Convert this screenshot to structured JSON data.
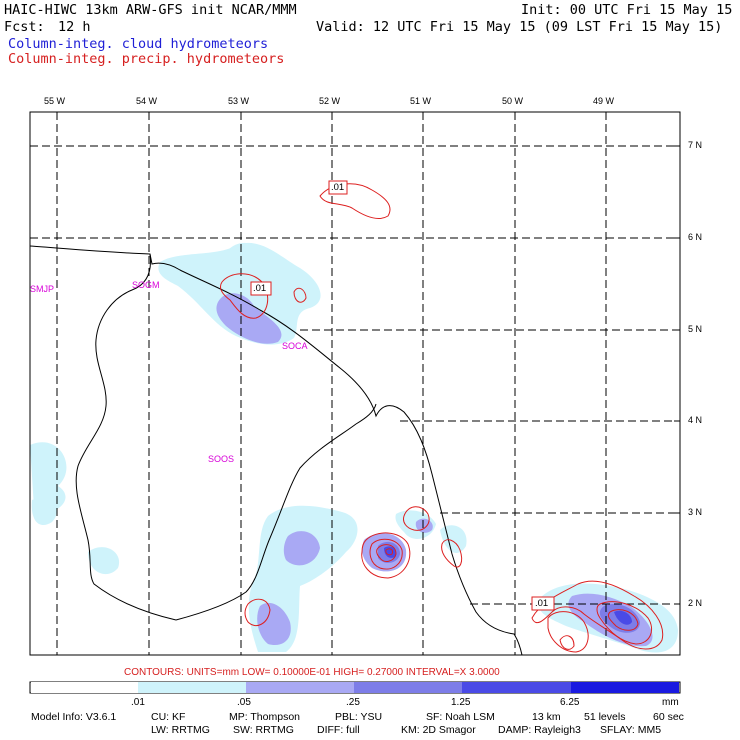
{
  "header": {
    "title": "HAIC-HIWC 13km ARW-GFS init   NCAR/MMM",
    "init": "Init: 00 UTC Fri 15 May 15",
    "fcst_label": "Fcst:",
    "fcst_value": "12 h",
    "valid": "Valid: 12 UTC Fri 15 May 15 (09 LST Fri 15 May 15)",
    "field1": "Column-integ. cloud hydrometeors",
    "field2": "Column-integ. precip. hydrometeors"
  },
  "lon_labels": [
    "55 W",
    "54 W",
    "53 W",
    "52 W",
    "51 W",
    "50 W",
    "49 W"
  ],
  "lat_labels": [
    "7 N",
    "6 N",
    "5 N",
    "4 N",
    "3 N",
    "2 N"
  ],
  "stations": [
    "SMJP",
    "SOGM",
    "SOCA",
    "SOOS"
  ],
  "contour_labels": [
    ".01",
    ".01",
    ".01"
  ],
  "contours_info": "CONTOURS:  UNITS=mm  LOW= 0.10000E-01  HIGH= 0.27000     INTERVAL=X  3.0000",
  "colorbar": {
    "ticks": [
      ".01",
      ".05",
      ".25",
      "1.25",
      "6.25",
      "mm"
    ],
    "colors": [
      "#ffffff",
      "#cff3fb",
      "#a9a9f4",
      "#7d7de8",
      "#4a4ae6",
      "#1a1ae0"
    ]
  },
  "model_info": {
    "line1": [
      "Model Info: V3.6.1",
      "CU: KF",
      "MP: Thompson",
      "PBL: YSU",
      "SF: Noah LSM",
      "13 km",
      "51 levels",
      "60 sec"
    ],
    "line2": [
      "LW: RRTMG",
      "SW: RRTMG",
      "DIFF: full",
      "KM: 2D Smagor",
      "DAMP: Rayleigh3",
      "SFLAY: MM5"
    ]
  }
}
